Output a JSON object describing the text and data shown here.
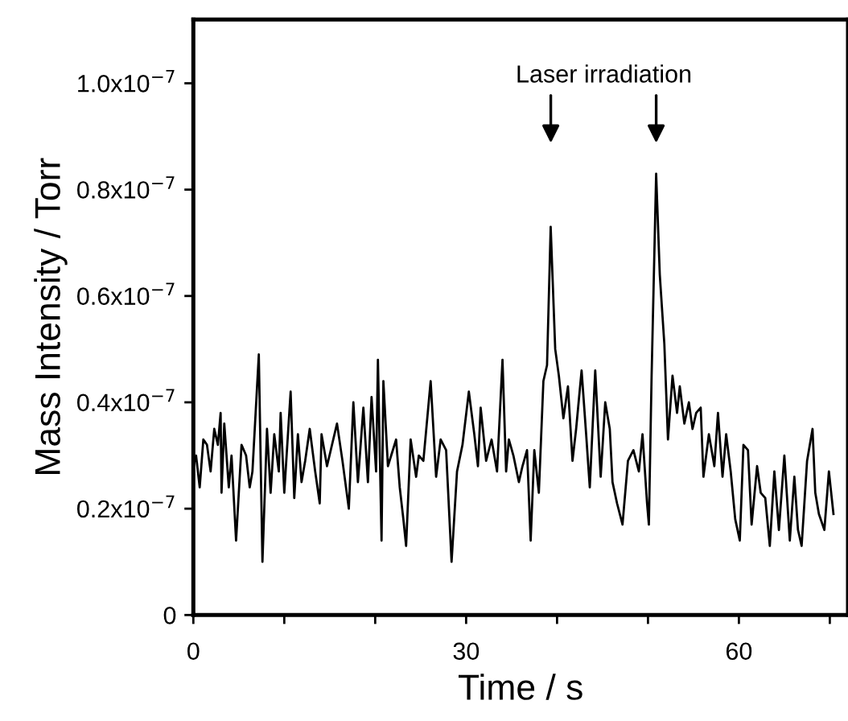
{
  "chart_data": {
    "type": "line",
    "xlabel": "Time / s",
    "ylabel": "Mass Intensity / Torr",
    "xlim": [
      0,
      72
    ],
    "ylim": [
      0,
      1.12e-07
    ],
    "xticks": [
      0,
      {
        "value": 10,
        "label": null
      },
      {
        "value": 20,
        "label": null
      },
      30,
      {
        "value": 40,
        "label": null
      },
      {
        "value": 50,
        "label": null
      },
      60,
      {
        "value": 70,
        "label": null
      }
    ],
    "yticks": [
      0,
      {
        "value": 2e-08,
        "label": "0.2x10$^{−7}$"
      },
      {
        "value": 4e-08,
        "label": "0.4x10$^{−7}$"
      },
      {
        "value": 6e-08,
        "label": "0.6x10$^{−7}$"
      },
      {
        "value": 8e-08,
        "label": "0.8x10$^{−7}$"
      },
      {
        "value": 1e-07,
        "label": "1.0x10$^{−7}$"
      }
    ],
    "grid": false,
    "marker": "none",
    "line_style": "solid",
    "annotations": [
      "Laser irradiation"
    ],
    "series": [
      {
        "color": "#000000",
        "x": [
          0.0,
          0.3,
          0.7,
          1.1,
          1.5,
          1.9,
          2.3,
          2.7,
          3.0,
          3.1,
          3.4,
          3.9,
          4.2,
          4.7,
          5.3,
          5.8,
          6.2,
          6.5,
          7.2,
          7.6,
          8.1,
          8.5,
          8.9,
          9.4,
          9.6,
          10.0,
          10.7,
          11.1,
          11.5,
          11.9,
          12.3,
          12.8,
          13.4,
          13.9,
          14.1,
          14.7,
          15.8,
          16.4,
          17.1,
          17.6,
          18.1,
          18.7,
          19.2,
          19.6,
          20.1,
          20.3,
          20.7,
          20.9,
          21.4,
          22.3,
          22.7,
          23.1,
          23.4,
          23.9,
          24.5,
          24.8,
          25.3,
          26.1,
          26.7,
          27.2,
          27.8,
          28.4,
          29.0,
          29.6,
          30.3,
          30.9,
          31.3,
          31.6,
          32.2,
          32.8,
          33.4,
          34.0,
          34.4,
          34.7,
          35.2,
          35.8,
          36.2,
          36.7,
          37.1,
          37.5,
          38.0,
          38.5,
          38.9,
          39.3,
          39.8,
          40.2,
          40.7,
          41.2,
          41.7,
          42.1,
          42.7,
          43.2,
          43.6,
          44.2,
          44.8,
          45.3,
          45.8,
          46.1,
          46.6,
          47.2,
          47.8,
          48.4,
          49.0,
          49.4,
          49.9,
          50.1,
          50.4,
          50.9,
          51.3,
          51.8,
          52.2,
          52.7,
          53.2,
          53.5,
          54.0,
          54.5,
          54.9,
          55.3,
          55.8,
          56.1,
          56.7,
          57.3,
          57.7,
          58.2,
          58.6,
          59.1,
          59.6,
          60.1,
          60.5,
          61.0,
          61.4,
          62.0,
          62.4,
          62.9,
          63.4,
          63.9,
          64.4,
          65.0,
          65.6,
          66.1,
          66.5,
          66.9,
          67.5,
          68.1,
          68.4,
          68.8,
          69.4,
          69.9,
          70.4
        ],
        "values": [
          2.8e-08,
          3e-08,
          2.4e-08,
          3.3e-08,
          3.2e-08,
          2.7e-08,
          3.5e-08,
          3.2e-08,
          3.8e-08,
          2.3e-08,
          3.6e-08,
          2.4e-08,
          3e-08,
          1.4e-08,
          3.2e-08,
          3e-08,
          2.4e-08,
          2.7e-08,
          4.9e-08,
          1e-08,
          3.5e-08,
          2.3e-08,
          3.4e-08,
          2.7e-08,
          3.8e-08,
          2.3e-08,
          4.2e-08,
          2.2e-08,
          3.4e-08,
          2.5e-08,
          2.9e-08,
          3.5e-08,
          2.7e-08,
          2.1e-08,
          3.4e-08,
          2.8e-08,
          3.6e-08,
          2.9e-08,
          2e-08,
          4e-08,
          2.5e-08,
          3.9e-08,
          2.5e-08,
          4.1e-08,
          2.7e-08,
          4.8e-08,
          1.4e-08,
          4.4e-08,
          2.8e-08,
          3.3e-08,
          2.4e-08,
          1.8e-08,
          1.3e-08,
          3.3e-08,
          2.6e-08,
          3e-08,
          2.9e-08,
          4.4e-08,
          2.6e-08,
          3.3e-08,
          3.1e-08,
          1e-08,
          2.7e-08,
          3.2e-08,
          4.2e-08,
          3.4e-08,
          2.8e-08,
          3.9e-08,
          2.9e-08,
          3.3e-08,
          2.7e-08,
          4.8e-08,
          2.7e-08,
          3.3e-08,
          3e-08,
          2.5e-08,
          2.8e-08,
          3.1e-08,
          1.4e-08,
          3.1e-08,
          2.3e-08,
          4.4e-08,
          4.7e-08,
          7.3e-08,
          5e-08,
          4.5e-08,
          3.7e-08,
          4.3e-08,
          2.9e-08,
          3.5e-08,
          4.6e-08,
          3.4e-08,
          2.4e-08,
          4.6e-08,
          2.6e-08,
          4e-08,
          3.5e-08,
          2.5e-08,
          2.1e-08,
          1.7e-08,
          2.9e-08,
          3.1e-08,
          2.7e-08,
          3.4e-08,
          2.1e-08,
          1.7e-08,
          4.5e-08,
          8.3e-08,
          6.4e-08,
          5.1e-08,
          3.3e-08,
          4.5e-08,
          3.8e-08,
          4.3e-08,
          3.6e-08,
          4e-08,
          3.5e-08,
          3.8e-08,
          3.9e-08,
          2.6e-08,
          3.4e-08,
          2.8e-08,
          3.8e-08,
          2.6e-08,
          3.4e-08,
          2.7e-08,
          1.8e-08,
          1.4e-08,
          3.2e-08,
          3.1e-08,
          1.7e-08,
          2.8e-08,
          2.3e-08,
          2.2e-08,
          1.3e-08,
          2.7e-08,
          1.6e-08,
          3e-08,
          1.4e-08,
          2.6e-08,
          1.6e-08,
          1.3e-08,
          2.9e-08,
          3.5e-08,
          2.3e-08,
          1.9e-08,
          1.6e-08,
          2.7e-08,
          1.9e-08
        ]
      }
    ]
  }
}
